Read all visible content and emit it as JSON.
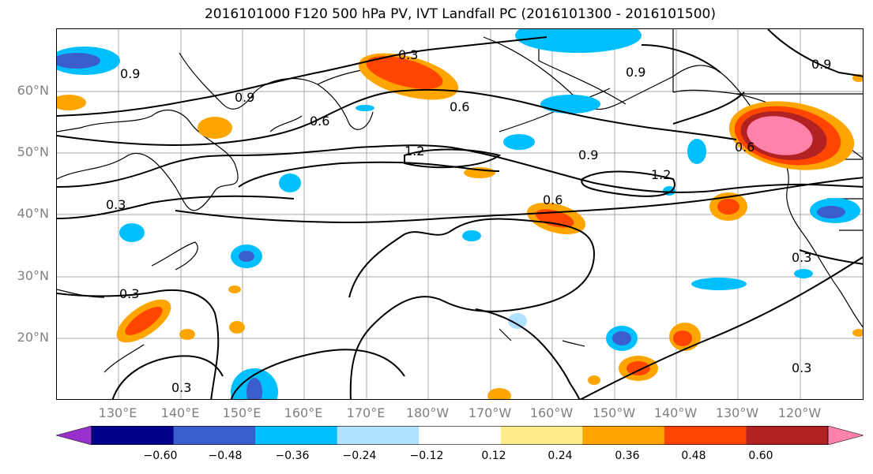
{
  "title": "2016101000 F120 500 hPa PV, IVT Landfall PC (2016101300 - 2016101500)",
  "lat_labels": [
    "60°N",
    "50°N",
    "40°N",
    "30°N",
    "20°N"
  ],
  "lon_labels": [
    "130°E",
    "140°E",
    "150°E",
    "160°E",
    "170°E",
    "180°W",
    "170°W",
    "160°W",
    "150°W",
    "140°W",
    "130°W",
    "120°W"
  ],
  "contour_labels": [
    "0.9",
    "0.3",
    "0.6",
    "0.9",
    "0.6",
    "1.2",
    "0.9",
    "1.2",
    "0.6",
    "0.9",
    "0.6",
    "0.9",
    "0.3",
    "0.3",
    "0.3",
    "0.3",
    "0.3"
  ],
  "colorbar": {
    "colors": [
      "#9932cc",
      "#00008b",
      "#3a5fcd",
      "#00bfff",
      "#b0e2ff",
      "#ffffff",
      "#ffec8b",
      "#ffa500",
      "#ff4500",
      "#b22222",
      "#ff82ab"
    ],
    "tick_labels": [
      "−0.60",
      "−0.48",
      "−0.36",
      "−0.24",
      "−0.12",
      "0.12",
      "0.24",
      "0.36",
      "0.48",
      "0.60"
    ]
  }
}
